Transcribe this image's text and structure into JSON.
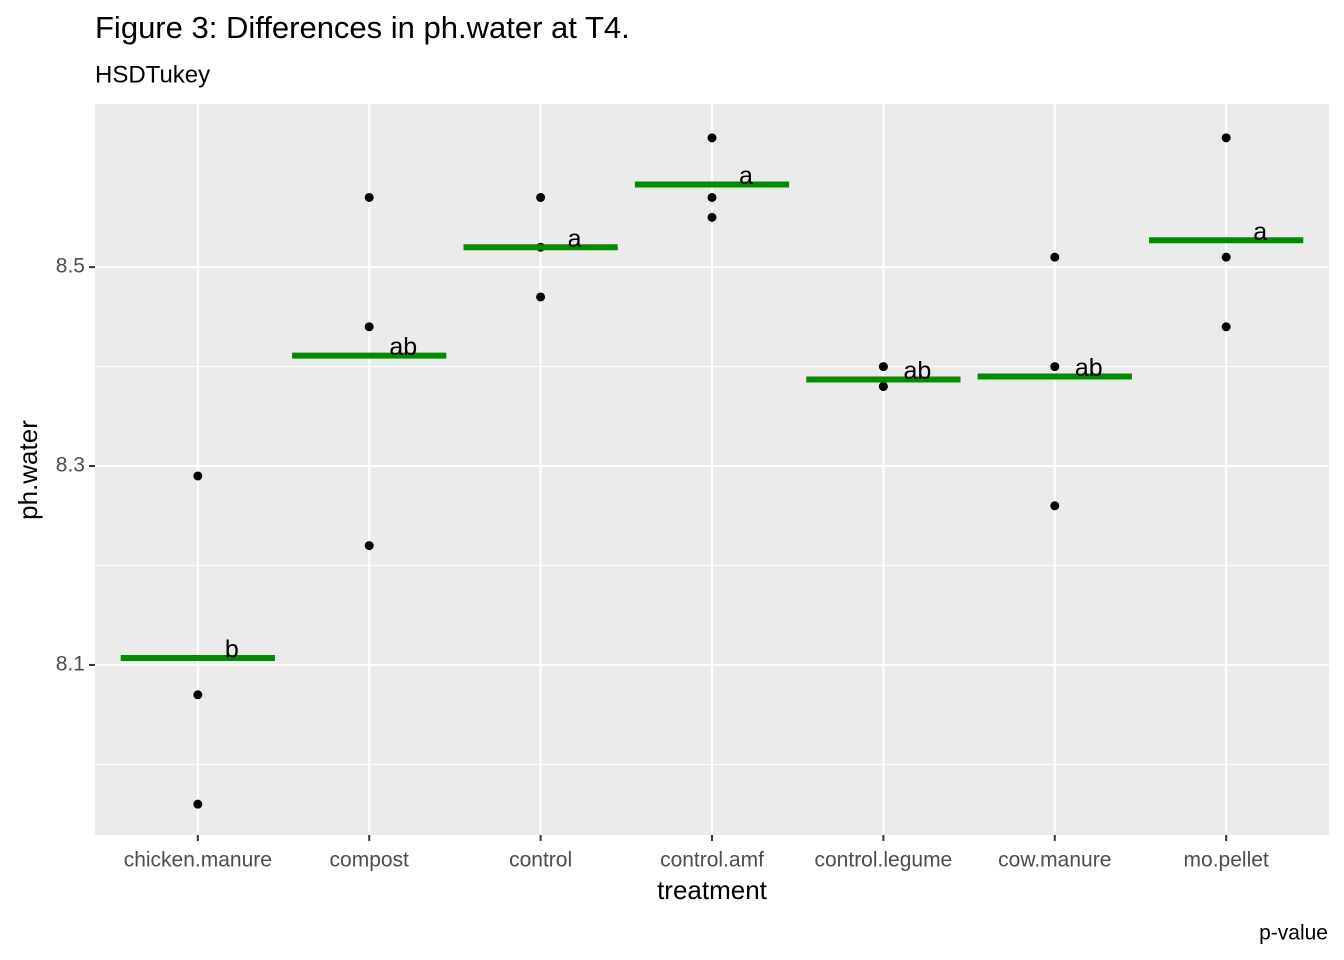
{
  "chart_data": {
    "type": "strip",
    "title": "Figure 3: Differences in ph.water at T4.",
    "subtitle": "HSDTukey",
    "x_label": "treatment",
    "y_label": "ph.water",
    "caption": "p-value",
    "categories": [
      "chicken.manure",
      "compost",
      "control",
      "control.amf",
      "control.legume",
      "cow.manure",
      "mo.pellet"
    ],
    "points": [
      [
        8.29,
        8.07,
        7.96
      ],
      [
        8.57,
        8.44,
        8.22
      ],
      [
        8.57,
        8.52,
        8.47
      ],
      [
        8.63,
        8.57,
        8.55
      ],
      [
        8.4,
        8.38,
        8.38
      ],
      [
        8.51,
        8.4,
        8.26
      ],
      [
        8.63,
        8.51,
        8.44
      ]
    ],
    "point_color": "#000000",
    "means": [
      8.107,
      8.411,
      8.52,
      8.583,
      8.387,
      8.39,
      8.527
    ],
    "mean_color": "#008b00",
    "letters": [
      "b",
      "ab",
      "a",
      "a",
      "ab",
      "ab",
      "a"
    ],
    "ylim": [
      7.929,
      8.664
    ],
    "yticks": [
      8.1,
      8.3,
      8.5
    ],
    "minor_yticks": [
      8.0,
      8.2,
      8.4
    ],
    "grid": true
  }
}
